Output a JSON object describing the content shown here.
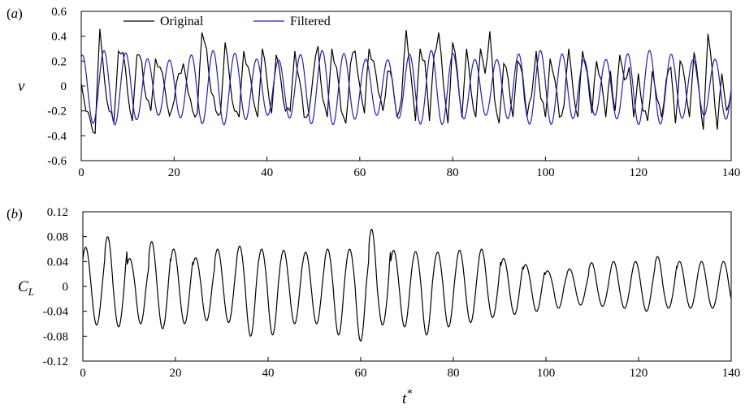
{
  "chart_data": [
    {
      "type": "line",
      "panel_label": "a",
      "ylabel": "v",
      "xlim": [
        0,
        140
      ],
      "ylim": [
        -0.6,
        0.6
      ],
      "x_ticks": [
        "0",
        "20",
        "40",
        "60",
        "80",
        "100",
        "120",
        "140"
      ],
      "y_ticks": [
        "0.6",
        "0.4",
        "0.2",
        "0",
        "-0.2",
        "-0.4",
        "-0.6"
      ],
      "legend": {
        "placement": "top-left",
        "entries": [
          "Original",
          "Filtered"
        ]
      },
      "series": [
        {
          "name": "Original",
          "color": "#000000",
          "x": [
            0,
            1,
            2,
            3,
            4,
            5,
            6,
            7,
            8,
            9,
            10,
            11,
            12,
            13,
            14,
            15,
            16,
            17,
            18,
            19,
            20,
            21,
            22,
            23,
            24,
            25,
            26,
            27,
            28,
            29,
            30,
            31,
            32,
            33,
            34,
            35,
            36,
            37,
            38,
            39,
            40,
            41,
            42,
            43,
            44,
            45,
            46,
            47,
            48,
            49,
            50,
            51,
            52,
            53,
            54,
            55,
            56,
            57,
            58,
            59,
            60,
            61,
            62,
            63,
            64,
            65,
            66,
            67,
            68,
            69,
            70,
            71,
            72,
            73,
            74,
            75,
            76,
            77,
            78,
            79,
            80,
            81,
            82,
            83,
            84,
            85,
            86,
            87,
            88,
            89,
            90,
            91,
            92,
            93,
            94,
            95,
            96,
            97,
            98,
            99,
            100,
            101,
            102,
            103,
            104,
            105,
            106,
            107,
            108,
            109,
            110,
            111,
            112,
            113,
            114,
            115,
            116,
            117,
            118,
            119,
            120,
            121,
            122,
            123,
            124,
            125,
            126,
            127,
            128,
            129,
            130,
            131,
            132,
            133,
            134,
            135,
            136,
            137,
            138,
            139,
            140
          ],
          "values": [
            0.02,
            -0.2,
            -0.28,
            -0.38,
            0.46,
            0.05,
            -0.2,
            -0.3,
            0.28,
            0.27,
            -0.05,
            -0.28,
            0.25,
            0.2,
            -0.1,
            -0.2,
            0.22,
            0.15,
            -0.02,
            -0.24,
            -0.12,
            0.1,
            0.18,
            -0.05,
            -0.2,
            -0.22,
            0.43,
            0.3,
            -0.05,
            -0.2,
            -0.22,
            0.35,
            0.05,
            -0.2,
            -0.25,
            0.28,
            0.15,
            -0.1,
            -0.25,
            0.3,
            0.05,
            -0.22,
            0.25,
            0.05,
            -0.2,
            -0.2,
            0.28,
            0.05,
            -0.25,
            -0.22,
            0.1,
            0.32,
            -0.1,
            -0.25,
            0.3,
            0.15,
            -0.2,
            -0.3,
            0.18,
            0.28,
            0.0,
            -0.22,
            0.3,
            0.2,
            -0.05,
            -0.2,
            0.12,
            0.05,
            -0.25,
            -0.1,
            0.45,
            0.1,
            -0.28,
            0.3,
            0.2,
            -0.28,
            0.25,
            0.43,
            0.02,
            -0.3,
            0.35,
            0.12,
            -0.25,
            0.3,
            -0.05,
            -0.25,
            0.3,
            0.1,
            0.44,
            -0.1,
            -0.3,
            0.18,
            0.05,
            -0.25,
            0.2,
            0.1,
            -0.25,
            -0.08,
            0.28,
            -0.1,
            -0.25,
            0.22,
            0.05,
            -0.25,
            -0.15,
            0.3,
            -0.05,
            -0.25,
            0.28,
            0.1,
            -0.22,
            0.2,
            0.05,
            -0.25,
            0.12,
            -0.2,
            0.25,
            0.05,
            0.15,
            -0.25,
            0.1,
            -0.2,
            -0.28,
            0.12,
            -0.1,
            -0.25,
            0.05,
            0.15,
            -0.3,
            0.2,
            0.05,
            -0.25,
            0.27,
            0.0,
            -0.35,
            0.42,
            0.1,
            -0.35,
            0.1,
            -0.2,
            -0.05
          ]
        },
        {
          "name": "Filtered",
          "color": "#1f1fb4",
          "form": "sinusoid",
          "period": 4.7,
          "amplitude_range": [
            0.22,
            0.3
          ]
        }
      ]
    },
    {
      "type": "line",
      "panel_label": "b",
      "ylabel": "C",
      "ylabel_sub": "L",
      "xlabel": "t",
      "xlabel_sup": "*",
      "xlim": [
        0,
        140
      ],
      "ylim": [
        -0.12,
        0.12
      ],
      "x_ticks": [
        "0",
        "20",
        "40",
        "60",
        "80",
        "100",
        "120",
        "140"
      ],
      "y_ticks": [
        "0.12",
        "0.08",
        "0.04",
        "0",
        "-0.04",
        "-0.08",
        "-0.12"
      ],
      "series": [
        {
          "color": "#000000",
          "form": "sinusoid",
          "period": 4.75,
          "peaks": [
            0.063,
            0.08,
            0.045,
            0.072,
            0.06,
            0.046,
            0.06,
            0.065,
            0.06,
            0.058,
            0.055,
            0.06,
            0.06,
            0.092,
            0.058,
            0.056,
            0.055,
            0.058,
            0.06,
            0.045,
            0.035,
            0.025,
            0.028,
            0.038,
            0.04,
            0.04,
            0.048,
            0.04,
            0.04,
            0.04
          ],
          "troughs": [
            -0.062,
            -0.065,
            -0.06,
            -0.068,
            -0.06,
            -0.055,
            -0.058,
            -0.08,
            -0.078,
            -0.06,
            -0.06,
            -0.078,
            -0.088,
            -0.062,
            -0.065,
            -0.078,
            -0.065,
            -0.058,
            -0.05,
            -0.045,
            -0.04,
            -0.035,
            -0.03,
            -0.032,
            -0.035,
            -0.04,
            -0.035,
            -0.035,
            -0.035,
            -0.035
          ]
        }
      ]
    }
  ]
}
